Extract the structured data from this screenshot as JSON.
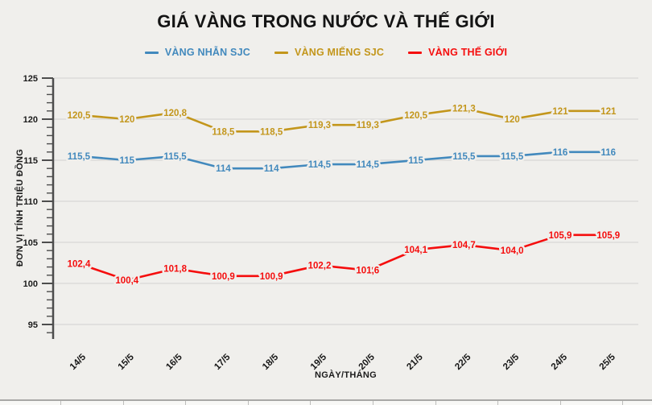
{
  "title": "GIÁ VÀNG TRONG NƯỚC VÀ THẾ GIỚI",
  "colors": {
    "background": "#f0efec",
    "gridline": "#dcdcda",
    "axis": "#4d4d4d",
    "blue": "#4289bd",
    "gold": "#c3961b",
    "red": "#f50d0d"
  },
  "chart_data": {
    "type": "line",
    "title": "GIÁ VÀNG TRONG NƯỚC VÀ THẾ GIỚI",
    "xlabel": "NGÀY/THÁNG",
    "ylabel": "ĐƠN VỊ TÍNH TRIỆU ĐỒNG",
    "ylim": [
      93,
      125
    ],
    "yticks": [
      95,
      100,
      105,
      110,
      115,
      120,
      125
    ],
    "grid": true,
    "legend_position": "top",
    "categories": [
      "14/5",
      "15/5",
      "16/5",
      "17/5",
      "18/5",
      "19/5",
      "20/5",
      "21/5",
      "22/5",
      "23/5",
      "24/5",
      "25/5"
    ],
    "series": [
      {
        "name": "VÀNG NHẪN SJC",
        "color": "#4289bd",
        "values": [
          115.5,
          115,
          115.5,
          114,
          114,
          114.5,
          114.5,
          115,
          115.5,
          115.5,
          116,
          116
        ],
        "labels": [
          "115,5",
          "115",
          "115,5",
          "114",
          "114",
          "114,5",
          "114,5",
          "115",
          "115,5",
          "115,5",
          "116",
          "116"
        ]
      },
      {
        "name": "VÀNG MIẾNG SJC",
        "color": "#c3961b",
        "values": [
          120.5,
          120,
          120.8,
          118.5,
          118.5,
          119.3,
          119.3,
          120.5,
          121.3,
          120,
          121,
          121
        ],
        "labels": [
          "120,5",
          "120",
          "120,8",
          "118,5",
          "118,5",
          "119,3",
          "119,3",
          "120,5",
          "121,3",
          "120",
          "121",
          "121"
        ]
      },
      {
        "name": "VÀNG THẾ GIỚI",
        "color": "#f50d0d",
        "values": [
          102.4,
          100.4,
          101.8,
          100.9,
          100.9,
          102.2,
          101.6,
          104.1,
          104.7,
          104.0,
          105.9,
          105.9
        ],
        "labels": [
          "102,4",
          "100,4",
          "101,8",
          "100,9",
          "100,9",
          "102,2",
          "101,6",
          "104,1",
          "104,7",
          "104,0",
          "105,9",
          "105,9"
        ]
      }
    ]
  }
}
